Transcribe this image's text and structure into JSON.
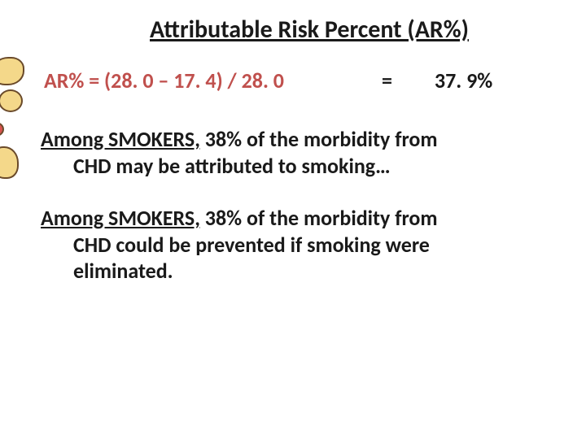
{
  "title": "Attributable Risk Percent (AR%)",
  "formula": {
    "expression": "AR% = (28. 0 – 17. 4) / 28. 0",
    "equals": "=",
    "result": "37. 9%",
    "expression_color": "#c0504d",
    "result_color": "#1a1a1a"
  },
  "paragraph1": {
    "lead": "Among SMOKERS,",
    "rest_line1": " 38% of the morbidity from",
    "line2": "CHD may be attributed to smoking…"
  },
  "paragraph2": {
    "lead": "Among SMOKERS,",
    "rest_line1": " 38% of the morbidity from",
    "line2": "CHD could be prevented if smoking were",
    "line3": "eliminated."
  },
  "styling": {
    "background_color": "#ffffff",
    "title_fontsize": 30,
    "body_fontsize": 26,
    "font_family": "Calibri",
    "underline_color": "#1a1a1a"
  }
}
